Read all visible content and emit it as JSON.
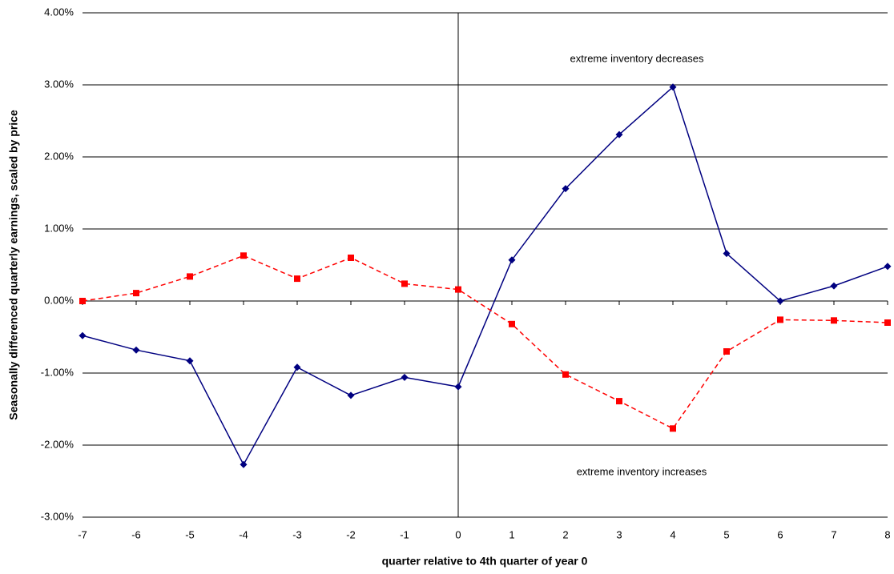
{
  "chart_data": {
    "type": "line",
    "x_label": "quarter relative to 4th quarter of year 0",
    "y_label": "Seasonally differenced quarterly earnings, scaled by price",
    "annotations": [
      "extreme inventory decreases",
      "extreme inventory increases"
    ],
    "x": [
      -7,
      -6,
      -5,
      -4,
      -3,
      -2,
      -1,
      0,
      1,
      2,
      3,
      4,
      5,
      6,
      7,
      8
    ],
    "series": [
      {
        "color": "#000080",
        "marker": "diamond",
        "dash": false,
        "values": [
          -0.48,
          -0.68,
          -0.83,
          -2.27,
          -0.92,
          -1.31,
          -1.06,
          -1.19,
          0.57,
          1.56,
          2.31,
          2.97,
          0.66,
          0.0,
          0.21,
          0.48
        ]
      },
      {
        "color": "#ff0000",
        "marker": "square",
        "dash": true,
        "values": [
          0.0,
          0.11,
          0.34,
          0.63,
          0.31,
          0.6,
          0.24,
          0.16,
          -0.32,
          -1.02,
          -1.39,
          -1.77,
          -0.7,
          -0.26,
          -0.27,
          -0.3
        ]
      }
    ],
    "xlim": [
      -7,
      8
    ],
    "xticks": [
      -7,
      -6,
      -5,
      -4,
      -3,
      -2,
      -1,
      0,
      1,
      2,
      3,
      4,
      5,
      6,
      7,
      8
    ],
    "ylim": [
      -3,
      4
    ],
    "yticks": [
      {
        "value": -3,
        "label": "-3.00%"
      },
      {
        "value": -2,
        "label": "-2.00%"
      },
      {
        "value": -1,
        "label": "-1.00%"
      },
      {
        "value": 0,
        "label": "0.00%"
      },
      {
        "value": 1,
        "label": "1.00%"
      },
      {
        "value": 2,
        "label": "2.00%"
      },
      {
        "value": 3,
        "label": "3.00%"
      },
      {
        "value": 4,
        "label": "4.00%"
      }
    ],
    "grid": true
  }
}
